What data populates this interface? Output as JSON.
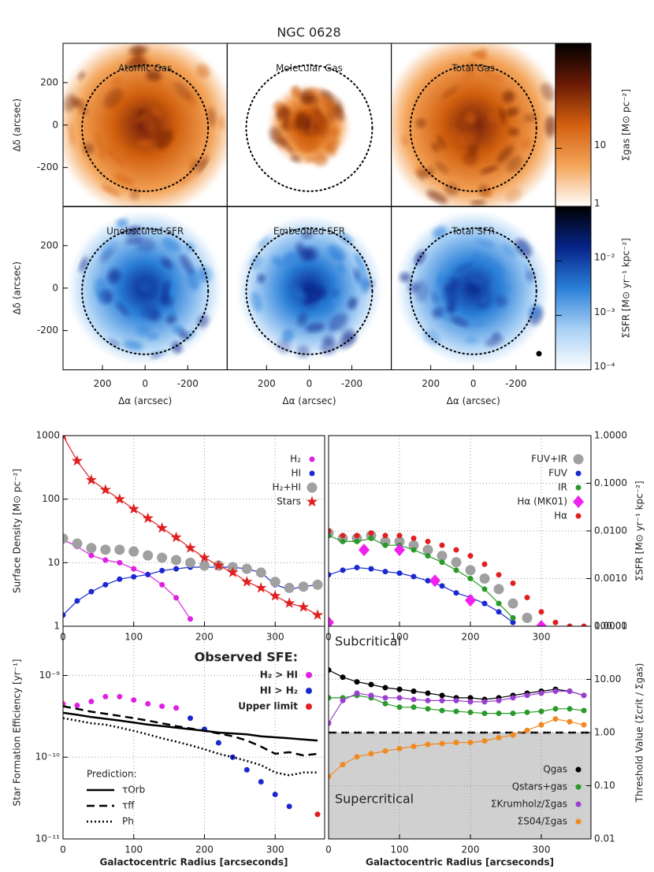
{
  "title": "NGC 0628",
  "maps": {
    "xlabel": "Δα (arcsec)",
    "ylabel": "Δδ (arcsec)",
    "xlim": [
      385,
      -385
    ],
    "ylim": [
      -385,
      385
    ],
    "xticks": [
      200,
      0,
      -200
    ],
    "yticks": [
      -200,
      0,
      200
    ],
    "panels": [
      {
        "label": "Atomic Gas",
        "kind": "gas",
        "extent": 1.0
      },
      {
        "label": "Molecular Gas",
        "kind": "gas",
        "extent": 0.45
      },
      {
        "label": "Total Gas",
        "kind": "gas",
        "extent": 1.0
      },
      {
        "label": "Unobscured SFR",
        "kind": "sfr",
        "extent": 0.85
      },
      {
        "label": "Embedded SFR",
        "kind": "sfr",
        "extent": 0.8
      },
      {
        "label": "Total SFR",
        "kind": "sfr",
        "extent": 0.85
      }
    ],
    "colorbars": [
      {
        "label": "Σgas [M⊙ pc⁻²]",
        "clim": [
          1,
          630
        ],
        "ticks": [
          1,
          10
        ],
        "colors": [
          "#ffffff",
          "#f4a55a",
          "#d2600f",
          "#6b1a06",
          "#000000"
        ]
      },
      {
        "label": "ΣSFR [M⊙ yr⁻¹ kpc⁻²]",
        "clim": [
          0.0001,
          0.1
        ],
        "ticks": [
          {
            "value": 0.0001,
            "label": "10⁻⁴"
          },
          {
            "value": 0.001,
            "label": "10⁻³"
          },
          {
            "value": 0.01,
            "label": "10⁻²"
          }
        ],
        "colors": [
          "#ffffff",
          "#a8d0f5",
          "#2a7fd8",
          "#07248a",
          "#000000"
        ]
      }
    ]
  },
  "chart_data": [
    {
      "type": "line",
      "ylabel": "Surface Density [M⊙ pc⁻²]",
      "log_y": true,
      "grid": true,
      "yaxis_side": "left",
      "legend": "upper right",
      "xlim": [
        0,
        370
      ],
      "xticks": [
        0,
        100,
        200,
        300
      ],
      "ylim": [
        1,
        1000
      ],
      "yticks": [
        1,
        10,
        100,
        1000
      ],
      "x": [
        0,
        20,
        40,
        60,
        80,
        100,
        120,
        140,
        160,
        180,
        200,
        220,
        240,
        260,
        280,
        300,
        320,
        340,
        360
      ],
      "series": [
        {
          "name": "H₂",
          "color": "#e020e0",
          "marker": "circle",
          "dash": "solid",
          "values": [
            23,
            18,
            13,
            11,
            10,
            8,
            6.5,
            4.5,
            2.8,
            1.3,
            null,
            null,
            null,
            null,
            null,
            null,
            null,
            null,
            null
          ]
        },
        {
          "name": "HI",
          "color": "#1a28d0",
          "marker": "circle",
          "dash": "solid",
          "values": [
            1.5,
            2.5,
            3.5,
            4.5,
            5.5,
            6,
            6.5,
            7.5,
            8,
            8.5,
            8.5,
            8.5,
            8.5,
            8,
            7,
            4.5,
            3.8,
            4.2,
            4.5
          ]
        },
        {
          "name": "H₂+HI",
          "color": "#a0a0a0",
          "marker": "big",
          "dash": "none",
          "values": [
            24,
            20,
            17,
            16,
            16,
            15,
            13,
            12,
            11,
            10,
            9,
            9,
            8.5,
            8,
            7,
            5,
            4,
            4.2,
            4.5
          ]
        },
        {
          "name": "Stars",
          "color": "#e02020",
          "marker": "star",
          "dash": "solid",
          "values": [
            1000,
            400,
            200,
            140,
            100,
            70,
            50,
            35,
            25,
            17,
            12,
            9,
            7,
            5,
            4,
            3,
            2.3,
            2,
            1.5
          ]
        }
      ]
    },
    {
      "type": "line",
      "ylabel": "ΣSFR [M⊙ yr⁻¹ kpc⁻²]",
      "log_y": true,
      "grid": true,
      "yaxis_side": "right",
      "legend": "upper right",
      "xlim": [
        0,
        370
      ],
      "xticks": [
        0,
        100,
        200,
        300
      ],
      "ylim": [
        0.0001,
        1
      ],
      "yticks": [
        {
          "value": 0.0001,
          "label": "0.0001"
        },
        {
          "value": 0.001,
          "label": "0.0010"
        },
        {
          "value": 0.01,
          "label": "0.0100"
        },
        {
          "value": 0.1,
          "label": "0.1000"
        },
        {
          "value": 1,
          "label": "1.0000"
        }
      ],
      "x": [
        0,
        20,
        40,
        60,
        80,
        100,
        120,
        140,
        160,
        180,
        200,
        220,
        240,
        260,
        280,
        300,
        320,
        340,
        360
      ],
      "series": [
        {
          "name": "FUV+IR",
          "color": "#a0a0a0",
          "marker": "big",
          "dash": "none",
          "values": [
            0.009,
            0.007,
            0.007,
            0.008,
            0.006,
            0.006,
            0.005,
            0.004,
            0.003,
            0.0022,
            0.0015,
            0.001,
            0.0006,
            0.0003,
            0.00015,
            null,
            null,
            null,
            null
          ]
        },
        {
          "name": "FUV",
          "color": "#1a28d0",
          "marker": "circle",
          "dash": "solid",
          "values": [
            0.0012,
            0.0015,
            0.0017,
            0.0016,
            0.0014,
            0.0013,
            0.0011,
            0.0009,
            0.0007,
            0.0005,
            0.0004,
            0.0003,
            0.0002,
            0.00012,
            null,
            null,
            null,
            null,
            null
          ]
        },
        {
          "name": "IR",
          "color": "#2a9a2a",
          "marker": "circle",
          "dash": "solid",
          "values": [
            0.008,
            0.006,
            0.006,
            0.007,
            0.005,
            0.005,
            0.004,
            0.003,
            0.0022,
            0.0015,
            0.001,
            0.0006,
            0.0003,
            0.00015,
            null,
            null,
            null,
            null,
            null
          ]
        },
        {
          "name": "Hα (MK01)",
          "color": "#f020f0",
          "marker": "diamond",
          "dash": "none",
          "x": [
            0,
            50,
            100,
            150,
            200,
            300
          ],
          "values": [
            0.00012,
            0.004,
            0.004,
            0.0009,
            0.00035,
            0.0001
          ]
        },
        {
          "name": "Hα",
          "color": "#e02020",
          "marker": "circle",
          "dash": "none",
          "values": [
            0.01,
            0.008,
            0.008,
            0.009,
            0.008,
            0.008,
            0.007,
            0.006,
            0.005,
            0.004,
            0.003,
            0.002,
            0.0012,
            0.0008,
            0.0004,
            0.0002,
            0.00012,
            0.0001,
            0.0001
          ]
        }
      ]
    },
    {
      "type": "line",
      "ylabel": "Star Formation Efficiency [yr⁻¹]",
      "xlabel": "Galactocentric Radius [arcseconds]",
      "log_y": true,
      "grid": true,
      "yaxis_side": "left",
      "legend_titles": [
        "Observed SFE:",
        "Prediction:"
      ],
      "xlim": [
        0,
        370
      ],
      "xticks": [
        0,
        100,
        200,
        300
      ],
      "ylim": [
        1e-11,
        4e-09
      ],
      "yticks": [
        {
          "value": 1e-11,
          "label": "10⁻¹¹"
        },
        {
          "value": 1e-10,
          "label": "10⁻¹⁰"
        },
        {
          "value": 1e-09,
          "label": "10⁻⁹"
        }
      ],
      "x": [
        0,
        20,
        40,
        60,
        80,
        100,
        120,
        140,
        160,
        180,
        200,
        220,
        240,
        260,
        280,
        300,
        320,
        340,
        360
      ],
      "series": [
        {
          "name": "H₂ > HI",
          "color": "#e020e0",
          "marker": "circle",
          "dash": "none",
          "legend_group": 0,
          "values": [
            4.5e-10,
            4.3e-10,
            4.8e-10,
            5.5e-10,
            5.5e-10,
            5e-10,
            4.5e-10,
            4.2e-10,
            4e-10,
            null,
            null,
            null,
            null,
            null,
            null,
            null,
            null,
            null,
            null
          ]
        },
        {
          "name": "HI > H₂",
          "color": "#1a28d0",
          "marker": "circle",
          "dash": "none",
          "legend_group": 0,
          "values": [
            null,
            null,
            null,
            null,
            null,
            null,
            null,
            null,
            null,
            3e-10,
            2.2e-10,
            1.5e-10,
            1e-10,
            7e-11,
            5e-11,
            3.5e-11,
            2.5e-11,
            null,
            null
          ]
        },
        {
          "name": "Upper limit",
          "color": "#e02020",
          "marker": "circle",
          "dash": "none",
          "legend_group": 0,
          "x": [
            360
          ],
          "values": [
            2e-11
          ]
        },
        {
          "name": "τOrb",
          "color": "#000000",
          "marker": "none",
          "dash": "solid",
          "legend_group": 1,
          "values": [
            3.5e-10,
            3.3e-10,
            3.1e-10,
            2.95e-10,
            2.8e-10,
            2.65e-10,
            2.5e-10,
            2.4e-10,
            2.3e-10,
            2.2e-10,
            2.1e-10,
            2e-10,
            1.95e-10,
            1.9e-10,
            1.8e-10,
            1.75e-10,
            1.7e-10,
            1.65e-10,
            1.6e-10
          ]
        },
        {
          "name": "τff",
          "color": "#000000",
          "marker": "none",
          "dash": "dashed",
          "legend_group": 1,
          "values": [
            4.2e-10,
            3.9e-10,
            3.6e-10,
            3.4e-10,
            3.2e-10,
            3e-10,
            2.8e-10,
            2.6e-10,
            2.4e-10,
            2.25e-10,
            2.1e-10,
            1.95e-10,
            1.8e-10,
            1.6e-10,
            1.35e-10,
            1.1e-10,
            1.15e-10,
            1.05e-10,
            1.1e-10
          ]
        },
        {
          "name": "Ph",
          "color": "#000000",
          "marker": "none",
          "dash": "dotted",
          "legend_group": 1,
          "values": [
            3e-10,
            2.8e-10,
            2.6e-10,
            2.5e-10,
            2.3e-10,
            2.1e-10,
            1.9e-10,
            1.7e-10,
            1.55e-10,
            1.4e-10,
            1.25e-10,
            1.1e-10,
            1e-10,
            9e-11,
            8e-11,
            6.5e-11,
            6e-11,
            6.5e-11,
            6.5e-11
          ]
        }
      ]
    },
    {
      "type": "line",
      "ylabel": "Threshold Value (Σcrit / Σgas)",
      "xlabel": "Galactocentric Radius [arcseconds]",
      "log_y": true,
      "grid": true,
      "yaxis_side": "right",
      "legend": "lower right",
      "annotations": [
        "Subcritical",
        "Supercritical"
      ],
      "threshold": 1,
      "xlim": [
        0,
        370
      ],
      "xticks": [
        0,
        100,
        200,
        300
      ],
      "ylim": [
        0.01,
        100
      ],
      "yticks": [
        {
          "value": 0.01,
          "label": "0.01"
        },
        {
          "value": 0.1,
          "label": "0.10"
        },
        {
          "value": 1,
          "label": "1.00"
        },
        {
          "value": 10,
          "label": "10.00"
        },
        {
          "value": 100,
          "label": "100.00"
        }
      ],
      "x": [
        0,
        20,
        40,
        60,
        80,
        100,
        120,
        140,
        160,
        180,
        200,
        220,
        240,
        260,
        280,
        300,
        320,
        340,
        360
      ],
      "series": [
        {
          "name": "Qgas",
          "color": "#000000",
          "marker": "circle",
          "dash": "solid",
          "values": [
            15,
            11,
            9,
            8,
            7,
            6.5,
            6,
            5.5,
            5,
            4.5,
            4.5,
            4.2,
            4.5,
            5,
            5.5,
            6,
            6.5,
            6,
            5
          ]
        },
        {
          "name": "Qstars+gas",
          "color": "#2a9a2a",
          "marker": "circle",
          "dash": "solid",
          "values": [
            4.5,
            4.5,
            5,
            4.5,
            3.5,
            3,
            3,
            2.8,
            2.6,
            2.5,
            2.4,
            2.3,
            2.3,
            2.3,
            2.4,
            2.5,
            2.8,
            2.8,
            2.6
          ]
        },
        {
          "name": "ΣKrumholz/Σgas",
          "color": "#9a40d0",
          "marker": "circle",
          "dash": "solid",
          "values": [
            1.5,
            4,
            5.5,
            5,
            4.5,
            4.5,
            4.2,
            4,
            4,
            4,
            3.8,
            3.8,
            4,
            4.5,
            5,
            5.5,
            6,
            6,
            5
          ]
        },
        {
          "name": "ΣS04/Σgas",
          "color": "#f08a20",
          "marker": "circle",
          "dash": "solid",
          "values": [
            0.15,
            0.25,
            0.35,
            0.4,
            0.45,
            0.5,
            0.55,
            0.6,
            0.62,
            0.65,
            0.65,
            0.7,
            0.8,
            0.9,
            1.1,
            1.4,
            1.8,
            1.6,
            1.4
          ]
        }
      ]
    }
  ]
}
